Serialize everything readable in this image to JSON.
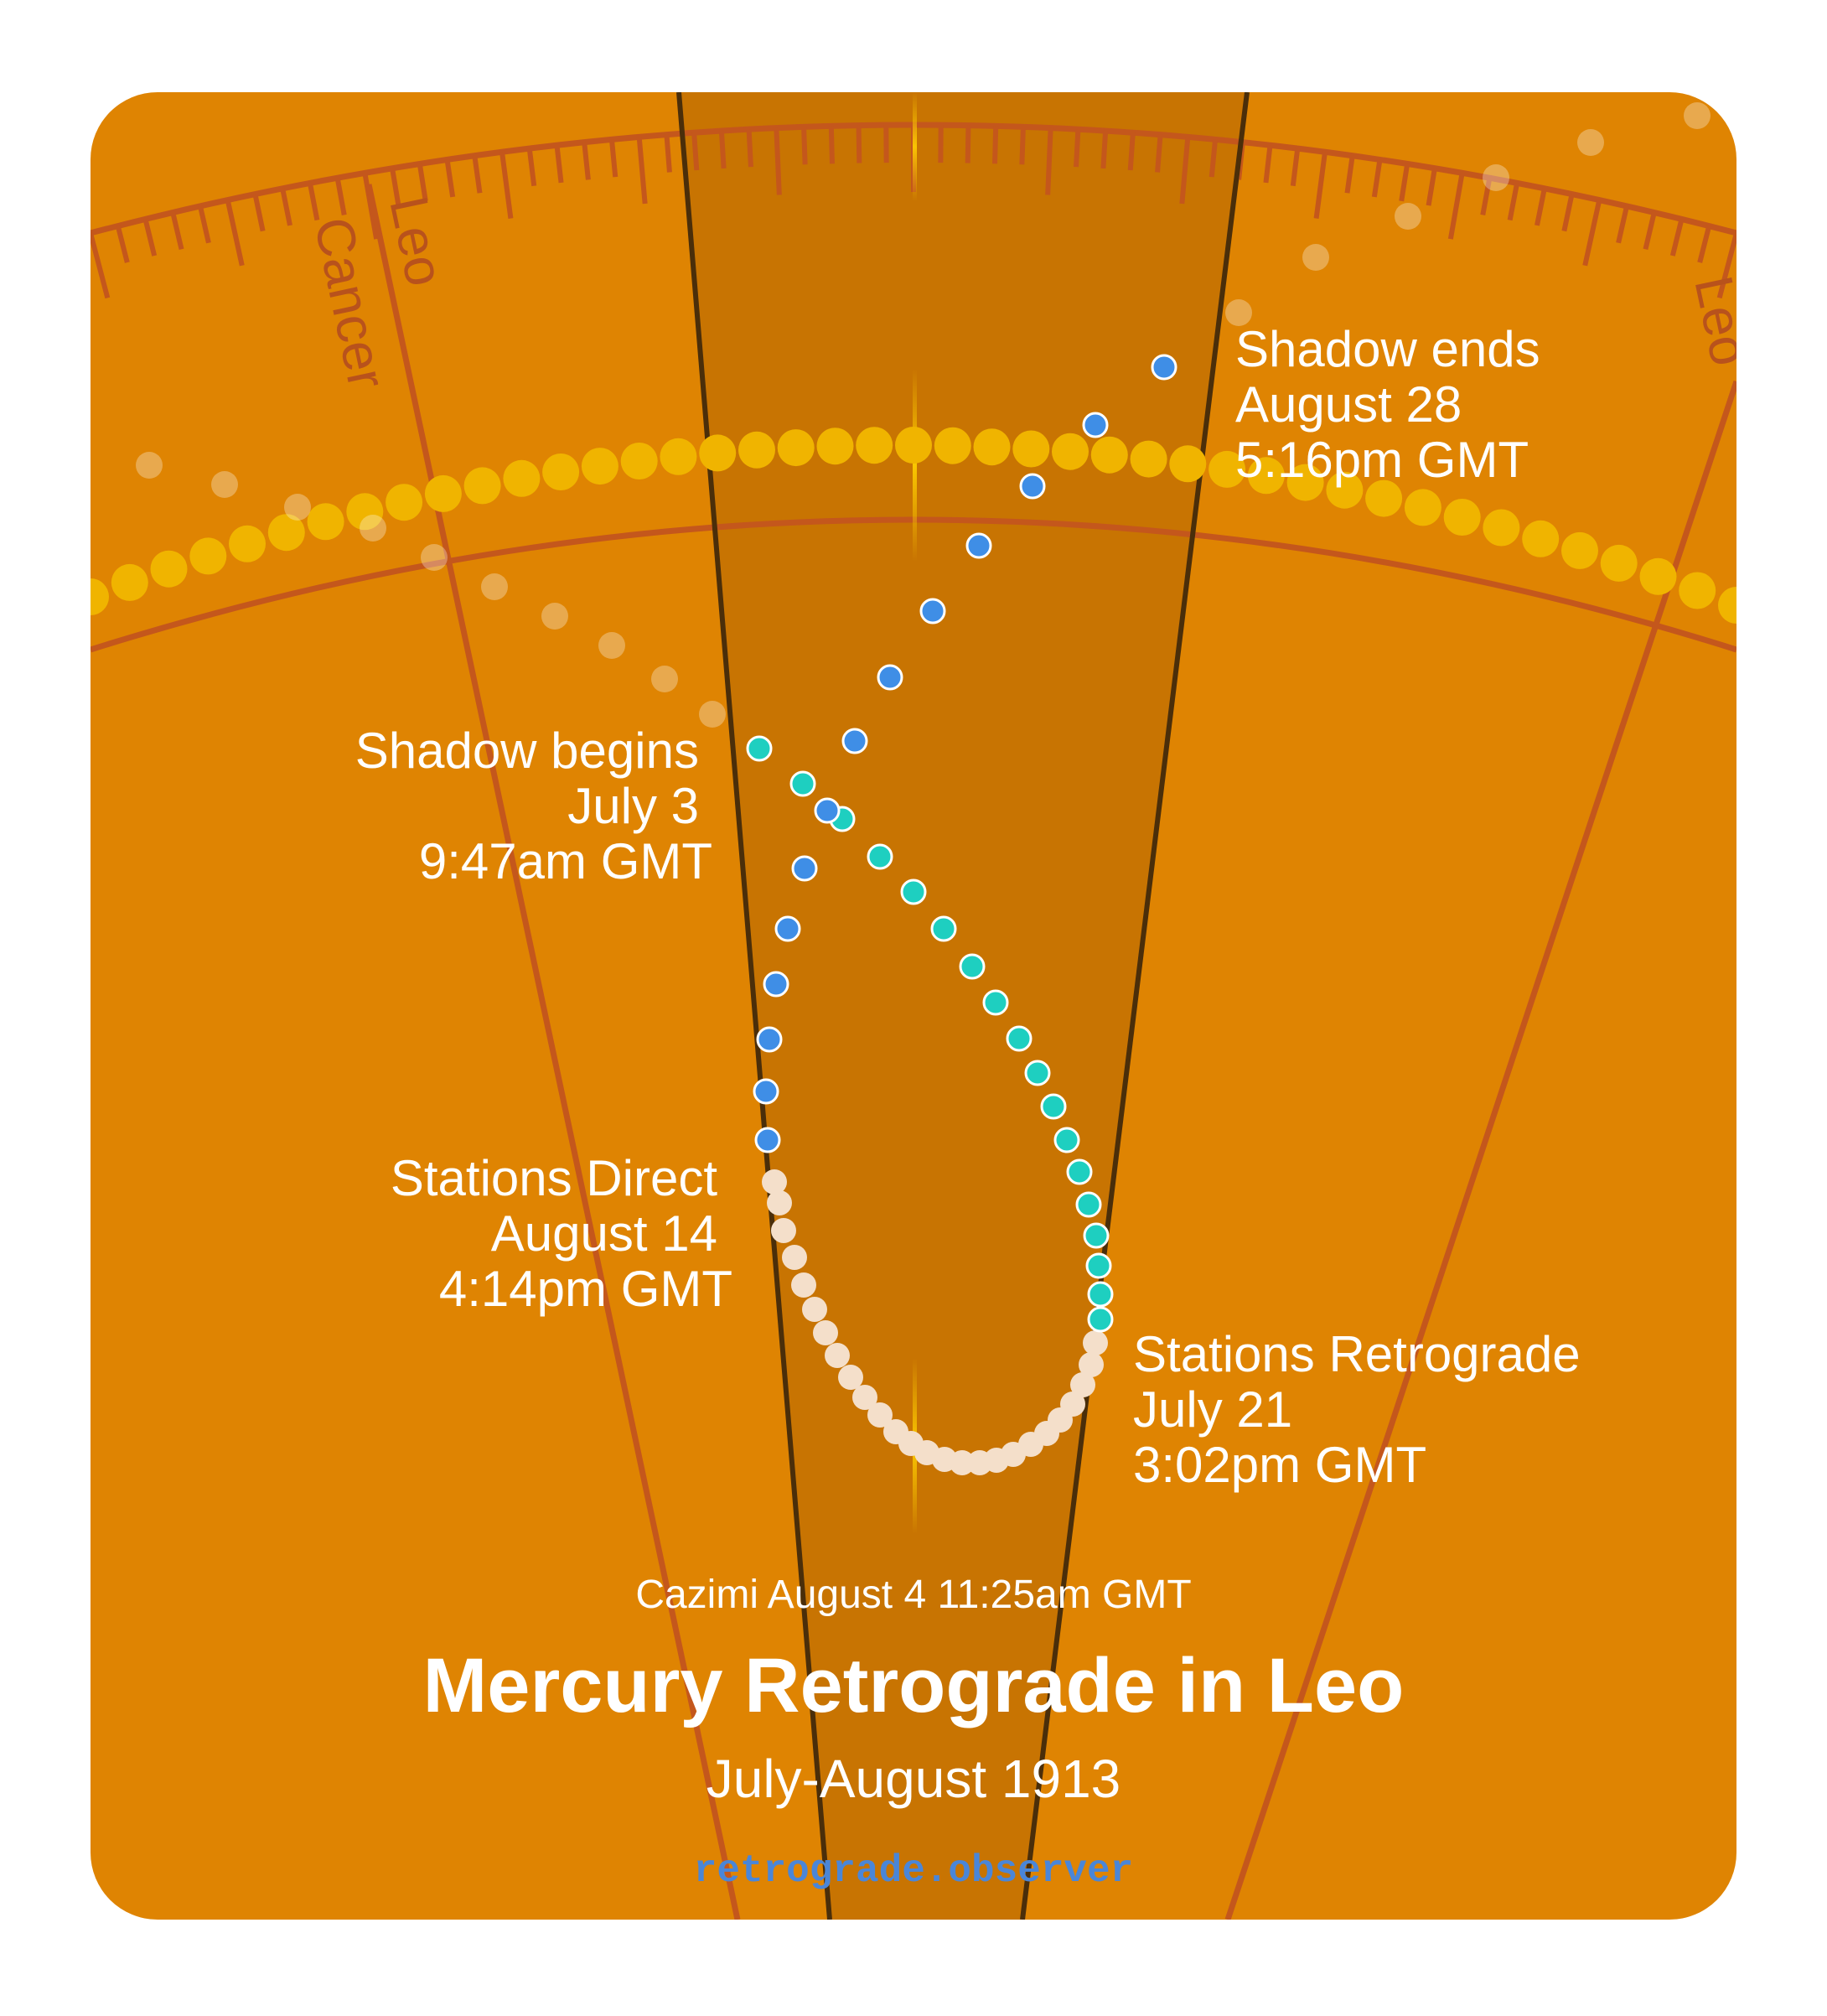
{
  "chart": {
    "title": "Mercury Retrograde in Leo",
    "subtitle": "July-August 1913",
    "cazimi": "Cazimi August 4 11:25am GMT",
    "site": "retrograde.observer"
  },
  "signs": [
    "Leo",
    "Cancer",
    "Leo"
  ],
  "events": {
    "shadow_begins": [
      "Shadow begins",
      "July 3",
      "9:47am GMT"
    ],
    "stations_retrograde": [
      "Stations Retrograde",
      "July 21",
      "3:02pm GMT"
    ],
    "stations_direct": [
      "Stations Direct",
      "August 14",
      "4:14pm GMT"
    ],
    "shadow_ends": [
      "Shadow ends",
      "August 28",
      "5:16pm GMT"
    ]
  },
  "colors": {
    "background": "#df8402",
    "retrograde_band": "#c87402",
    "band_edge": "#4a2e0a",
    "ecliptic_line": "#c4571c",
    "sun": "#f0b400",
    "pre_shadow": "#1ecfc0",
    "retrograde": "#f4dfca",
    "post_shadow": "#3f8ee6",
    "site": "#4a86d8"
  },
  "icons": [
    "sun-dot",
    "mercury-dot"
  ]
}
